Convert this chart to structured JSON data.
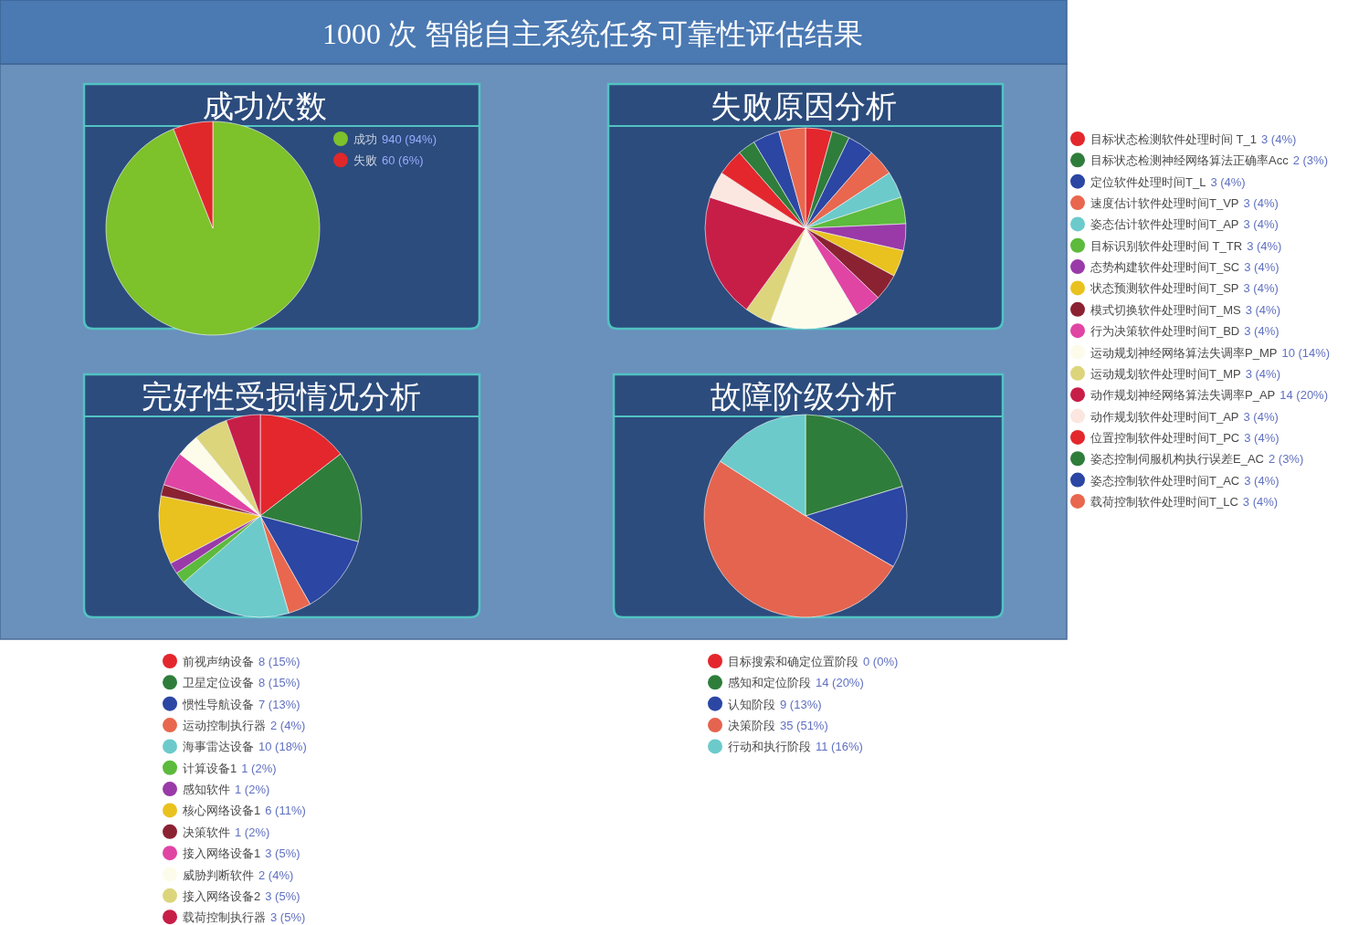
{
  "chart_data": [
    {
      "type": "other",
      "title": "1000 次 智能自主系统任务可靠性评估结果"
    },
    {
      "type": "pie",
      "title": "成功次数",
      "legend": "top right",
      "categories": [
        "成功",
        "失败"
      ],
      "values": [
        940,
        60
      ],
      "colors": [
        "#7dc12b",
        "#e0282a"
      ],
      "value_labels": [
        "940 (94%)",
        "60 (6%)"
      ]
    },
    {
      "type": "pie",
      "title": "失败原因分析",
      "legend": "right",
      "categories": [
        "目标状态检测软件处理时间 T_1",
        "目标状态检测神经网络算法正确率Acc",
        "定位软件处理时间T_L",
        "速度估计软件处理时间T_VP",
        "姿态估计软件处理时间T_AP",
        "目标识别软件处理时间 T_TR",
        "态势构建软件处理时间T_SC",
        "状态预测软件处理时间T_SP",
        "模式切换软件处理时间T_MS",
        "行为决策软件处理时间T_BD",
        "运动规划神经网络算法失调率P_MP",
        "运动规划软件处理时间T_MP",
        "动作规划神经网络算法失调率P_AP",
        "动作规划软件处理时间T_AP",
        "位置控制软件处理时间T_PC",
        "姿态控制伺服机构执行误差E_AC",
        "姿态控制软件处理时间T_AC",
        "载荷控制软件处理时间T_LC"
      ],
      "values": [
        3,
        2,
        3,
        3,
        3,
        3,
        3,
        3,
        3,
        3,
        10,
        3,
        14,
        3,
        3,
        2,
        3,
        3
      ],
      "colors": [
        "#e3272d",
        "#2f7d3b",
        "#2b46a3",
        "#e8674e",
        "#6ccacb",
        "#5cba3c",
        "#993aa8",
        "#e9c21f",
        "#8b2232",
        "#e045a4",
        "#fdfcea",
        "#dcd57c",
        "#c71e48",
        "#fbe7df",
        "#e3272d",
        "#2f7d3b",
        "#2b46a3",
        "#e8674e"
      ],
      "value_labels": [
        "3 (4%)",
        "2 (3%)",
        "3 (4%)",
        "3 (4%)",
        "3 (4%)",
        "3 (4%)",
        "3 (4%)",
        "3 (4%)",
        "3 (4%)",
        "3 (4%)",
        "10 (14%)",
        "3 (4%)",
        "14 (20%)",
        "3 (4%)",
        "3 (4%)",
        "2 (3%)",
        "3 (4%)",
        "3 (4%)"
      ]
    },
    {
      "type": "pie",
      "title": "完好性受损情况分析",
      "legend": "bottom",
      "categories": [
        "前视声纳设备",
        "卫星定位设备",
        "惯性导航设备",
        "运动控制执行器",
        "海事雷达设备",
        "计算设备1",
        "感知软件",
        "核心网络设备1",
        "决策软件",
        "接入网络设备1",
        "威胁判断软件",
        "接入网络设备2",
        "载荷控制执行器"
      ],
      "values": [
        8,
        8,
        7,
        2,
        10,
        1,
        1,
        6,
        1,
        3,
        2,
        3,
        3
      ],
      "colors": [
        "#e3272d",
        "#2f7d3b",
        "#2b46a3",
        "#e8674e",
        "#6ccacb",
        "#5cba3c",
        "#993aa8",
        "#e9c21f",
        "#8b2232",
        "#e045a4",
        "#fdfcea",
        "#dcd57c",
        "#c71e48"
      ],
      "value_labels": [
        "8 (15%)",
        "8 (15%)",
        "7 (13%)",
        "2 (4%)",
        "10 (18%)",
        "1 (2%)",
        "1 (2%)",
        "6 (11%)",
        "1 (2%)",
        "3 (5%)",
        "2 (4%)",
        "3 (5%)",
        "3 (5%)"
      ]
    },
    {
      "type": "pie",
      "title": "故障阶级分析",
      "legend": "bottom",
      "categories": [
        "目标搜索和确定位置阶段",
        "感知和定位阶段",
        "认知阶段",
        "决策阶段",
        "行动和执行阶段"
      ],
      "values": [
        0,
        14,
        9,
        35,
        11
      ],
      "colors": [
        "#e3272d",
        "#2f7d3b",
        "#2b46a3",
        "#e4644f",
        "#6ccacb"
      ],
      "value_labels": [
        "0 (0%)",
        "14 (20%)",
        "9 (13%)",
        "35 (51%)",
        "11 (16%)"
      ]
    }
  ]
}
